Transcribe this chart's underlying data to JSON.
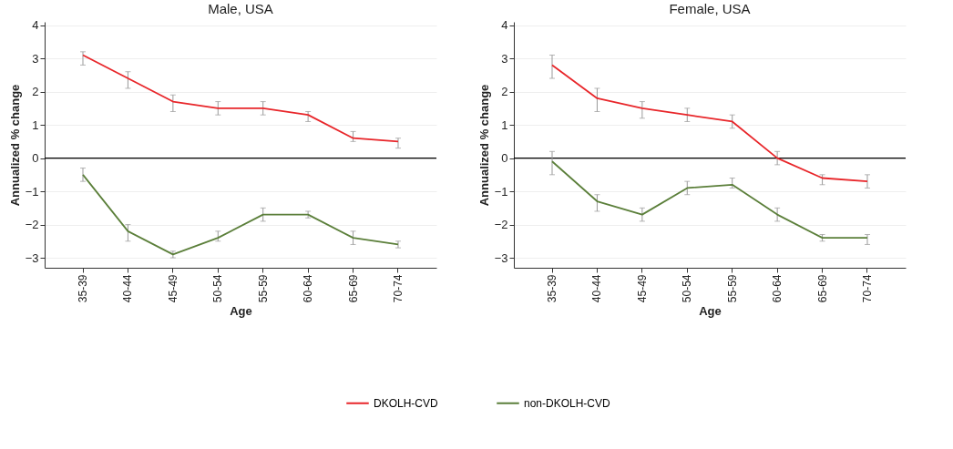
{
  "chart_data": [
    {
      "type": "line",
      "title": "Male, USA",
      "xlabel": "Age",
      "ylabel": "Annualized % change",
      "categories": [
        "35-39",
        "40-44",
        "45-49",
        "50-54",
        "55-59",
        "60-64",
        "65-69",
        "70-74"
      ],
      "series": [
        {
          "name": "DKOLH-CVD",
          "color": "#e8262a",
          "values": [
            3.1,
            2.4,
            1.7,
            1.5,
            1.5,
            1.3,
            0.6,
            0.5
          ],
          "errors": [
            [
              2.8,
              3.2
            ],
            [
              2.1,
              2.6
            ],
            [
              1.4,
              1.9
            ],
            [
              1.3,
              1.7
            ],
            [
              1.3,
              1.7
            ],
            [
              1.1,
              1.4
            ],
            [
              0.5,
              0.8
            ],
            [
              0.3,
              0.6
            ]
          ]
        },
        {
          "name": "non-DKOLH-CVD",
          "color": "#5b7f3a",
          "values": [
            -0.5,
            -2.2,
            -2.9,
            -2.4,
            -1.7,
            -1.7,
            -2.4,
            -2.6
          ],
          "errors": [
            [
              -0.7,
              -0.3
            ],
            [
              -2.5,
              -2.0
            ],
            [
              -3.0,
              -2.8
            ],
            [
              -2.5,
              -2.2
            ],
            [
              -1.9,
              -1.5
            ],
            [
              -1.8,
              -1.6
            ],
            [
              -2.6,
              -2.2
            ],
            [
              -2.7,
              -2.5
            ]
          ]
        }
      ],
      "ylim": [
        -3.3,
        4.1
      ],
      "yticks": [
        -3,
        -2,
        -1,
        0,
        1,
        2,
        3,
        4
      ],
      "grid": "y",
      "marker": "none",
      "legend": "bottom",
      "ref_lines": [
        {
          "axis": "y",
          "value": 0,
          "color": "#000000"
        }
      ]
    },
    {
      "type": "line",
      "title": "Female, USA",
      "xlabel": "Age",
      "ylabel": "Annualized % change",
      "categories": [
        "35-39",
        "40-44",
        "45-49",
        "50-54",
        "55-59",
        "60-64",
        "65-69",
        "70-74"
      ],
      "series": [
        {
          "name": "DKOLH-CVD",
          "color": "#e8262a",
          "values": [
            2.8,
            1.8,
            1.5,
            1.3,
            1.1,
            0,
            -0.6,
            -0.7
          ],
          "errors": [
            [
              2.4,
              3.1
            ],
            [
              1.4,
              2.1
            ],
            [
              1.2,
              1.7
            ],
            [
              1.1,
              1.5
            ],
            [
              0.9,
              1.3
            ],
            [
              -0.2,
              0.2
            ],
            [
              -0.8,
              -0.5
            ],
            [
              -0.9,
              -0.5
            ]
          ]
        },
        {
          "name": "non-DKOLH-CVD",
          "color": "#5b7f3a",
          "values": [
            -0.1,
            -1.3,
            -1.7,
            -0.9,
            -0.8,
            -1.7,
            -2.4,
            -2.4
          ],
          "errors": [
            [
              -0.5,
              0.2
            ],
            [
              -1.6,
              -1.1
            ],
            [
              -1.9,
              -1.5
            ],
            [
              -1.1,
              -0.7
            ],
            [
              -0.9,
              -0.6
            ],
            [
              -1.9,
              -1.5
            ],
            [
              -2.5,
              -2.3
            ],
            [
              -2.6,
              -2.3
            ]
          ]
        }
      ],
      "ylim": [
        -3.3,
        4.1
      ],
      "yticks": [
        -3,
        -2,
        -1,
        0,
        1,
        2,
        3,
        4
      ],
      "grid": "y",
      "marker": "none",
      "legend": "bottom",
      "ref_lines": [
        {
          "axis": "y",
          "value": 0,
          "color": "#000000"
        }
      ]
    }
  ]
}
